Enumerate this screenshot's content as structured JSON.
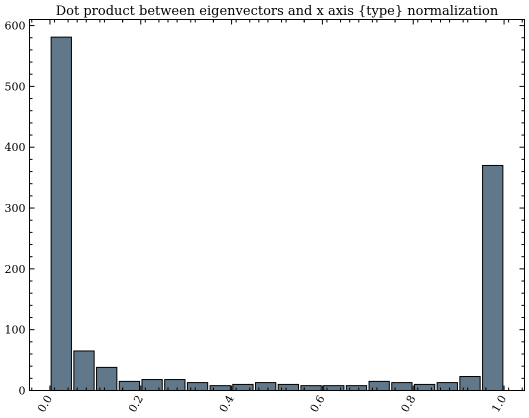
{
  "chart_data": {
    "type": "bar",
    "title": "Dot product between eigenvectors and x axis {type} normalization",
    "xlabel": "",
    "ylabel": "",
    "bins": [
      {
        "x0": 0.0,
        "x1": 0.05,
        "value": 581
      },
      {
        "x0": 0.05,
        "x1": 0.1,
        "value": 65
      },
      {
        "x0": 0.1,
        "x1": 0.15,
        "value": 38
      },
      {
        "x0": 0.15,
        "x1": 0.2,
        "value": 15
      },
      {
        "x0": 0.2,
        "x1": 0.25,
        "value": 18
      },
      {
        "x0": 0.25,
        "x1": 0.3,
        "value": 18
      },
      {
        "x0": 0.3,
        "x1": 0.35,
        "value": 13
      },
      {
        "x0": 0.35,
        "x1": 0.4,
        "value": 8
      },
      {
        "x0": 0.4,
        "x1": 0.45,
        "value": 10
      },
      {
        "x0": 0.45,
        "x1": 0.5,
        "value": 13
      },
      {
        "x0": 0.5,
        "x1": 0.55,
        "value": 10
      },
      {
        "x0": 0.55,
        "x1": 0.6,
        "value": 8
      },
      {
        "x0": 0.6,
        "x1": 0.65,
        "value": 8
      },
      {
        "x0": 0.65,
        "x1": 0.7,
        "value": 8
      },
      {
        "x0": 0.7,
        "x1": 0.75,
        "value": 15
      },
      {
        "x0": 0.75,
        "x1": 0.8,
        "value": 13
      },
      {
        "x0": 0.8,
        "x1": 0.85,
        "value": 10
      },
      {
        "x0": 0.85,
        "x1": 0.9,
        "value": 13
      },
      {
        "x0": 0.9,
        "x1": 0.95,
        "value": 23
      },
      {
        "x0": 0.95,
        "x1": 1.0,
        "value": 370
      }
    ],
    "xlim": [
      -0.045,
      1.045
    ],
    "ylim": [
      0,
      610
    ],
    "xticks": [
      0.0,
      0.2,
      0.4,
      0.6,
      0.8,
      1.0
    ],
    "xtick_labels": [
      "0.0",
      "0.2",
      "0.4",
      "0.6",
      "0.8",
      "1.0"
    ],
    "yticks": [
      0,
      100,
      200,
      300,
      400,
      500,
      600
    ],
    "ytick_labels": [
      "0",
      "100",
      "200",
      "300",
      "400",
      "500",
      "600"
    ],
    "grid": false,
    "colors": {
      "bar": "#607889",
      "edge": "#000000"
    }
  }
}
